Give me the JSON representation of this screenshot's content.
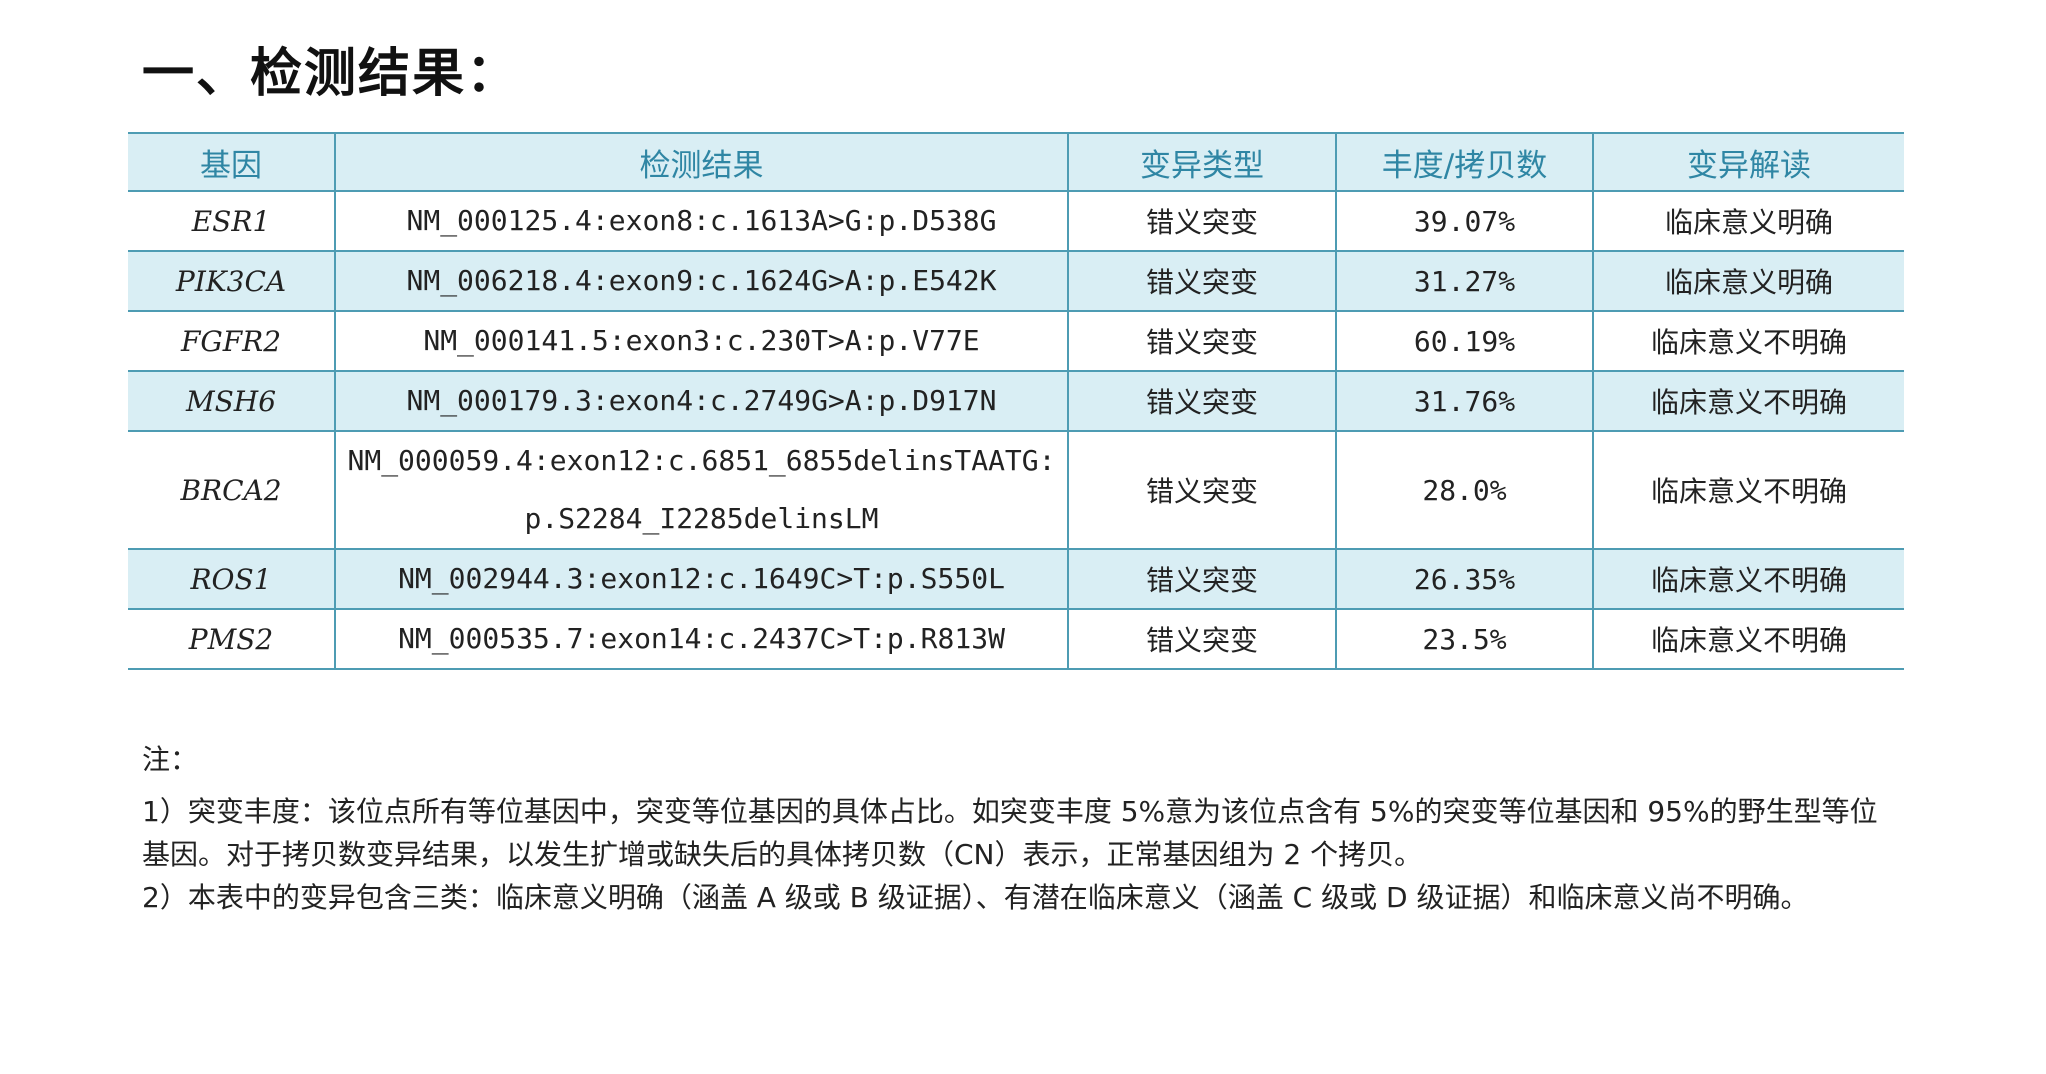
{
  "title": "一、检测结果：",
  "table": {
    "headers": [
      "基因",
      "检测结果",
      "变异类型",
      "丰度/拷贝数",
      "变异解读"
    ],
    "rows": [
      {
        "gene": "ESR1",
        "result": [
          "NM_000125.4:exon8:c.1613A>G:p.D538G"
        ],
        "type": "错义突变",
        "frequency": "39.07%",
        "interpretation": "临床意义明确",
        "shaded": false
      },
      {
        "gene": "PIK3CA",
        "result": [
          "NM_006218.4:exon9:c.1624G>A:p.E542K"
        ],
        "type": "错义突变",
        "frequency": "31.27%",
        "interpretation": "临床意义明确",
        "shaded": true
      },
      {
        "gene": "FGFR2",
        "result": [
          "NM_000141.5:exon3:c.230T>A:p.V77E"
        ],
        "type": "错义突变",
        "frequency": "60.19%",
        "interpretation": "临床意义不明确",
        "shaded": false
      },
      {
        "gene": "MSH6",
        "result": [
          "NM_000179.3:exon4:c.2749G>A:p.D917N"
        ],
        "type": "错义突变",
        "frequency": "31.76%",
        "interpretation": "临床意义不明确",
        "shaded": true
      },
      {
        "gene": "BRCA2",
        "result": [
          "NM_000059.4:exon12:c.6851_6855delinsTAATG:",
          "p.S2284_I2285delinsLM"
        ],
        "type": "错义突变",
        "frequency": "28.0%",
        "interpretation": "临床意义不明确",
        "shaded": false
      },
      {
        "gene": "ROS1",
        "result": [
          "NM_002944.3:exon12:c.1649C>T:p.S550L"
        ],
        "type": "错义突变",
        "frequency": "26.35%",
        "interpretation": "临床意义不明确",
        "shaded": true
      },
      {
        "gene": "PMS2",
        "result": [
          "NM_000535.7:exon14:c.2437C>T:p.R813W"
        ],
        "type": "错义突变",
        "frequency": "23.5%",
        "interpretation": "临床意义不明确",
        "shaded": false
      }
    ]
  },
  "notes": {
    "heading": "注：",
    "items": [
      "1）突变丰度：该位点所有等位基因中，突变等位基因的具体占比。如突变丰度 5%意为该位点含有 5%的突变等位基因和 95%的野生型等位基因。对于拷贝数变异结果，以发生扩增或缺失后的具体拷贝数（CN）表示，正常基因组为 2 个拷贝。",
      "2）本表中的变异包含三类：临床意义明确（涵盖 A 级或 B 级证据）、有潜在临床意义（涵盖 C 级或 D 级证据）和临床意义尚不明确。"
    ]
  },
  "colors": {
    "header_text": "#2f86a4",
    "header_background": "#d9eef4",
    "row_shading": "#d9eef4",
    "rule_lines": "#4e9cb3"
  }
}
